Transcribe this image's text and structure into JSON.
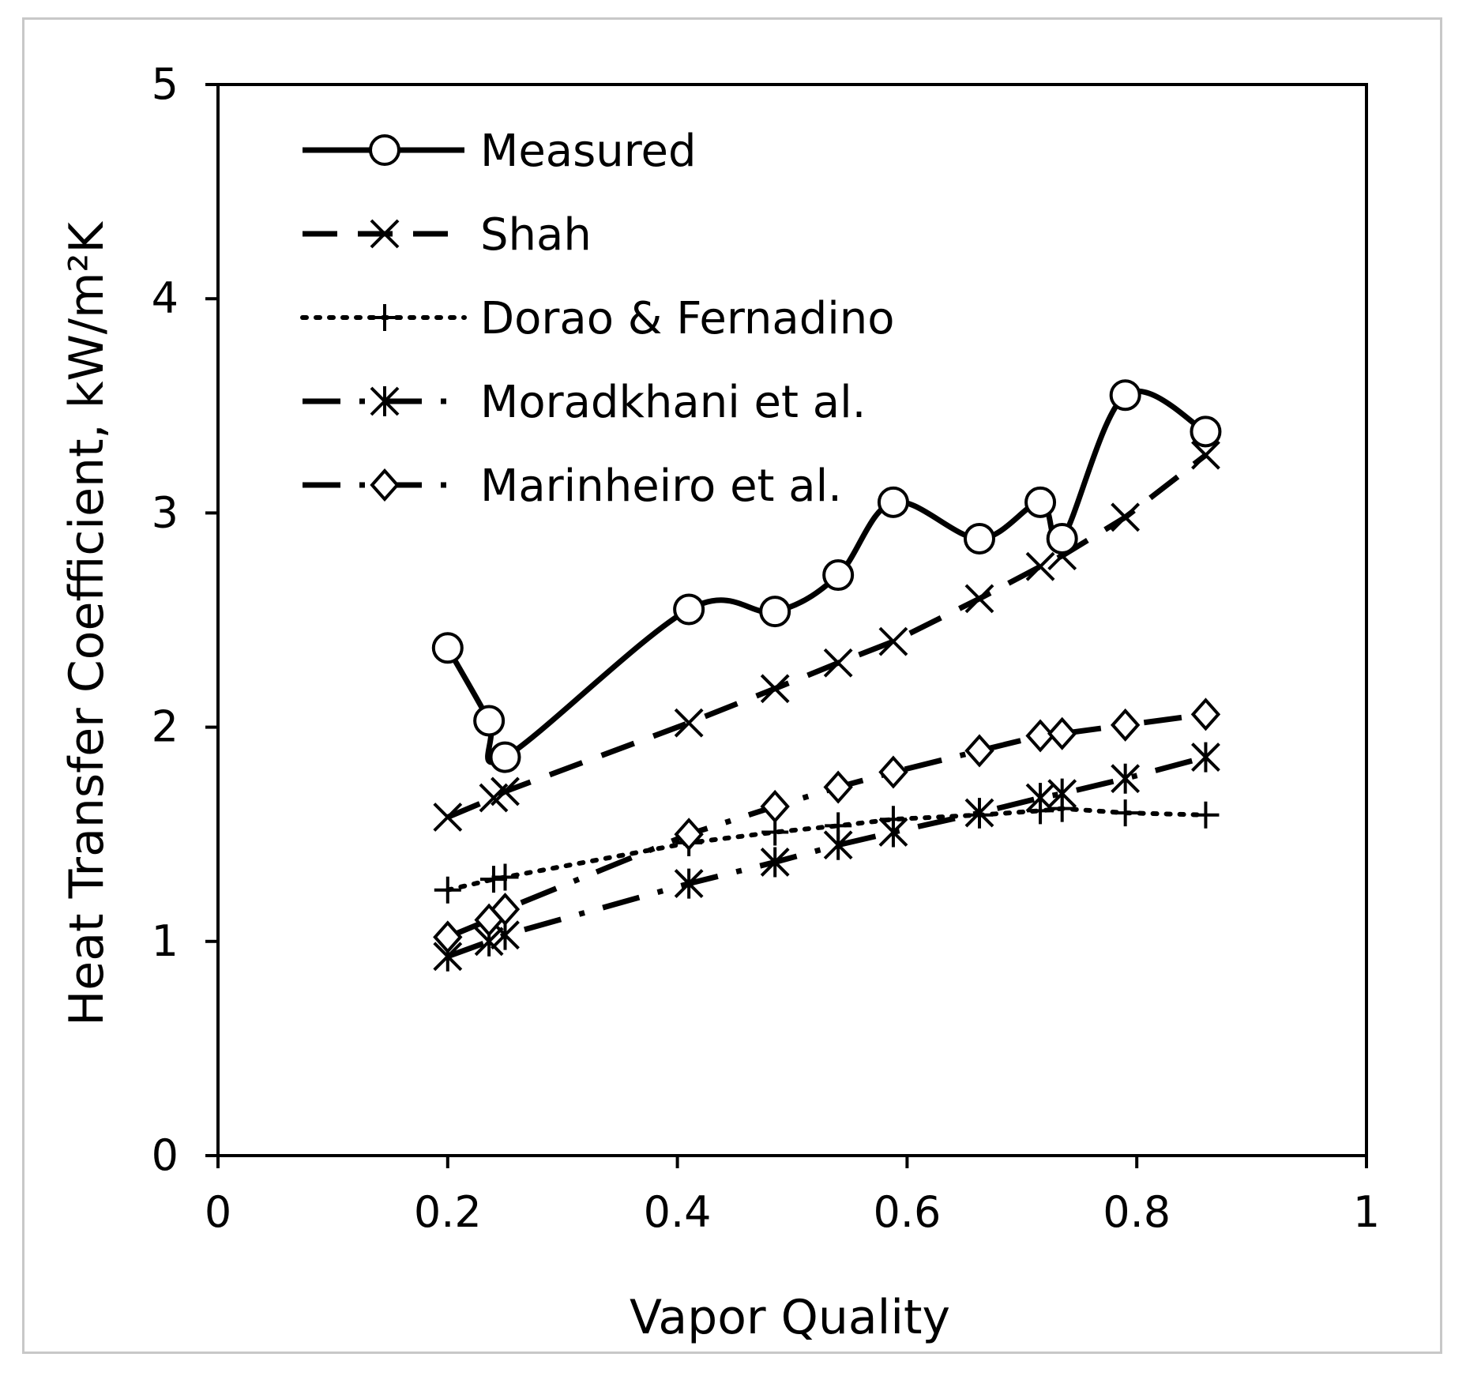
{
  "chart_data": {
    "type": "line",
    "xlabel": "Vapor Quality",
    "ylabel": "Heat Transfer Coefficient, kW/m²K",
    "xlim": [
      0,
      1
    ],
    "ylim": [
      0,
      5
    ],
    "x_ticks": [
      "0",
      "0.2",
      "0.4",
      "0.6",
      "0.8",
      "1"
    ],
    "y_ticks": [
      "0",
      "1",
      "2",
      "3",
      "4",
      "5"
    ],
    "grid": false,
    "legend_position": "top-left",
    "series": [
      {
        "name": "Measured",
        "style": "solid",
        "marker": "circle",
        "smooth": true,
        "points": [
          [
            0.2,
            2.37
          ],
          [
            0.236,
            2.03
          ],
          [
            0.25,
            1.86
          ],
          [
            0.41,
            2.55
          ],
          [
            0.485,
            2.54
          ],
          [
            0.54,
            2.71
          ],
          [
            0.588,
            3.05
          ],
          [
            0.663,
            2.88
          ],
          [
            0.716,
            3.05
          ],
          [
            0.735,
            2.88
          ],
          [
            0.79,
            3.55
          ],
          [
            0.86,
            3.38
          ]
        ]
      },
      {
        "name": "Shah",
        "style": "dashed",
        "marker": "x",
        "smooth": false,
        "points": [
          [
            0.2,
            1.58
          ],
          [
            0.24,
            1.67
          ],
          [
            0.25,
            1.7
          ],
          [
            0.41,
            2.02
          ],
          [
            0.485,
            2.18
          ],
          [
            0.54,
            2.3
          ],
          [
            0.588,
            2.4
          ],
          [
            0.663,
            2.6
          ],
          [
            0.716,
            2.75
          ],
          [
            0.735,
            2.8
          ],
          [
            0.79,
            2.98
          ],
          [
            0.86,
            3.27
          ]
        ]
      },
      {
        "name": "Dorao & Fernadino",
        "style": "dotted",
        "marker": "plus",
        "smooth": false,
        "points": [
          [
            0.2,
            1.24
          ],
          [
            0.24,
            1.29
          ],
          [
            0.25,
            1.3
          ],
          [
            0.41,
            1.46
          ],
          [
            0.485,
            1.51
          ],
          [
            0.54,
            1.54
          ],
          [
            0.588,
            1.57
          ],
          [
            0.663,
            1.59
          ],
          [
            0.716,
            1.61
          ],
          [
            0.735,
            1.62
          ],
          [
            0.79,
            1.6
          ],
          [
            0.86,
            1.59
          ]
        ]
      },
      {
        "name": "Moradkhani et al.",
        "style": "dash-dot",
        "marker": "asterisk",
        "smooth": false,
        "points": [
          [
            0.2,
            0.93
          ],
          [
            0.236,
            1.0
          ],
          [
            0.25,
            1.03
          ],
          [
            0.41,
            1.27
          ],
          [
            0.485,
            1.37
          ],
          [
            0.54,
            1.45
          ],
          [
            0.588,
            1.51
          ],
          [
            0.663,
            1.6
          ],
          [
            0.716,
            1.67
          ],
          [
            0.735,
            1.69
          ],
          [
            0.79,
            1.76
          ],
          [
            0.86,
            1.86
          ]
        ]
      },
      {
        "name": "Marinheiro et al.",
        "style": "dash-dot",
        "marker": "diamond",
        "smooth": false,
        "points": [
          [
            0.2,
            1.02
          ],
          [
            0.236,
            1.1
          ],
          [
            0.25,
            1.15
          ],
          [
            0.41,
            1.5
          ],
          [
            0.485,
            1.63
          ],
          [
            0.54,
            1.72
          ],
          [
            0.588,
            1.79
          ],
          [
            0.663,
            1.89
          ],
          [
            0.716,
            1.96
          ],
          [
            0.735,
            1.97
          ],
          [
            0.79,
            2.01
          ],
          [
            0.86,
            2.06
          ]
        ]
      }
    ]
  }
}
